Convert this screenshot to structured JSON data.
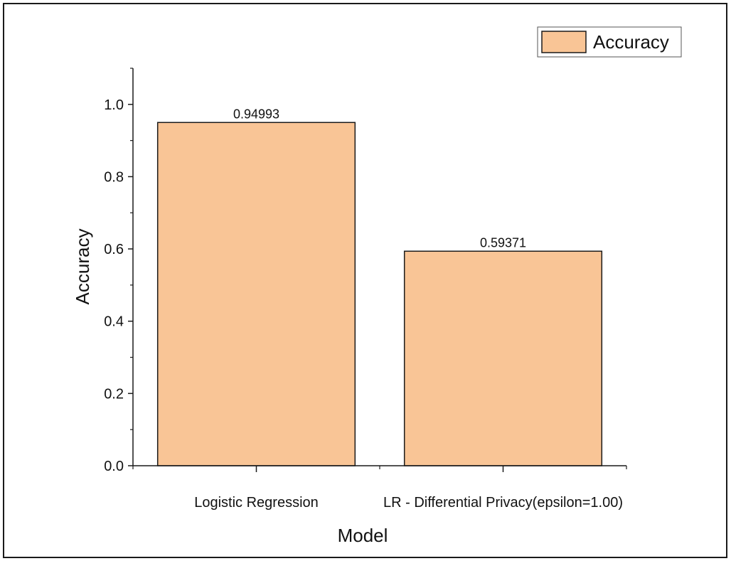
{
  "chart_data": {
    "type": "bar",
    "title": "",
    "xlabel": "Model",
    "ylabel": "Accuracy",
    "categories": [
      "Logistic Regression",
      "LR -  Differential Privacy(epsilon=1.00)"
    ],
    "series": [
      {
        "name": "Accuracy",
        "values": [
          0.94993,
          0.59371
        ],
        "data_labels": [
          "0.94993",
          "0.59371"
        ]
      }
    ],
    "ylim": [
      0.0,
      1.1
    ],
    "yticks": [
      0.0,
      0.2,
      0.4,
      0.6,
      0.8,
      1.0
    ],
    "ytick_labels": [
      "0.0",
      "0.2",
      "0.4",
      "0.6",
      "0.8",
      "1.0"
    ],
    "grid": false,
    "legend": {
      "placement": "top-right",
      "label": "Accuracy"
    },
    "colors": {
      "bar_fill": "#f9c596",
      "bar_edge": "#1a1a1a",
      "axis": "#1a1a1a"
    }
  }
}
